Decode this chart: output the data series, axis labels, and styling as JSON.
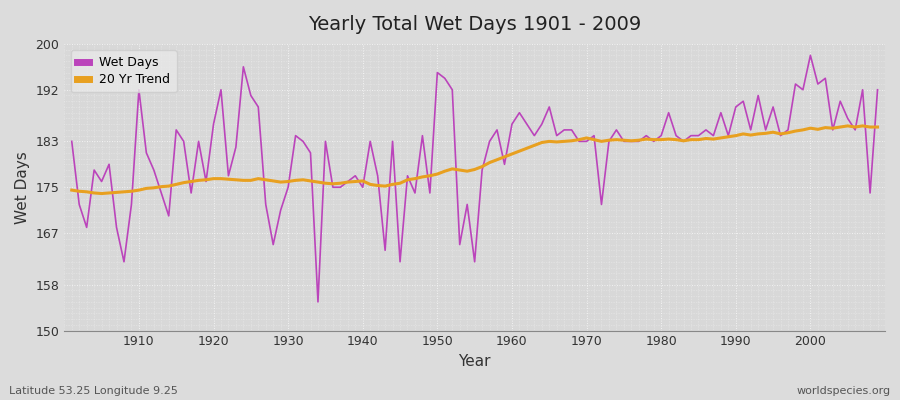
{
  "title": "Yearly Total Wet Days 1901 - 2009",
  "xlabel": "Year",
  "ylabel": "Wet Days",
  "footnote_left": "Latitude 53.25 Longitude 9.25",
  "footnote_right": "worldspecies.org",
  "ylim": [
    150,
    200
  ],
  "yticks": [
    150,
    158,
    167,
    175,
    183,
    192,
    200
  ],
  "line_color": "#bb44bb",
  "trend_color": "#e8a020",
  "bg_color": "#dcdcdc",
  "plot_bg_color": "#d8d8d8",
  "grid_color": "#ffffff",
  "years": [
    1901,
    1902,
    1903,
    1904,
    1905,
    1906,
    1907,
    1908,
    1909,
    1910,
    1911,
    1912,
    1913,
    1914,
    1915,
    1916,
    1917,
    1918,
    1919,
    1920,
    1921,
    1922,
    1923,
    1924,
    1925,
    1926,
    1927,
    1928,
    1929,
    1930,
    1931,
    1932,
    1933,
    1934,
    1935,
    1936,
    1937,
    1938,
    1939,
    1940,
    1941,
    1942,
    1943,
    1944,
    1945,
    1946,
    1947,
    1948,
    1949,
    1950,
    1951,
    1952,
    1953,
    1954,
    1955,
    1956,
    1957,
    1958,
    1959,
    1960,
    1961,
    1962,
    1963,
    1964,
    1965,
    1966,
    1967,
    1968,
    1969,
    1970,
    1971,
    1972,
    1973,
    1974,
    1975,
    1976,
    1977,
    1978,
    1979,
    1980,
    1981,
    1982,
    1983,
    1984,
    1985,
    1986,
    1987,
    1988,
    1989,
    1990,
    1991,
    1992,
    1993,
    1994,
    1995,
    1996,
    1997,
    1998,
    1999,
    2000,
    2001,
    2002,
    2003,
    2004,
    2005,
    2006,
    2007,
    2008,
    2009
  ],
  "wet_days": [
    183,
    172,
    168,
    178,
    176,
    179,
    168,
    162,
    172,
    192,
    181,
    178,
    174,
    170,
    185,
    183,
    174,
    183,
    176,
    186,
    192,
    177,
    182,
    196,
    191,
    189,
    172,
    165,
    171,
    175,
    184,
    183,
    181,
    155,
    183,
    175,
    175,
    176,
    177,
    175,
    183,
    177,
    164,
    183,
    162,
    177,
    174,
    184,
    174,
    195,
    194,
    192,
    165,
    172,
    162,
    178,
    183,
    185,
    179,
    186,
    188,
    186,
    184,
    186,
    189,
    184,
    185,
    185,
    183,
    183,
    184,
    172,
    183,
    185,
    183,
    183,
    183,
    184,
    183,
    184,
    188,
    184,
    183,
    184,
    184,
    185,
    184,
    188,
    184,
    189,
    190,
    185,
    191,
    185,
    189,
    184,
    185,
    193,
    192,
    198,
    193,
    194,
    185,
    190,
    187,
    185,
    192,
    174,
    192
  ],
  "trend": [
    174.5,
    174.3,
    174.2,
    174.0,
    173.9,
    174.0,
    174.1,
    174.2,
    174.3,
    174.5,
    174.8,
    174.9,
    175.1,
    175.2,
    175.5,
    175.8,
    176.0,
    176.2,
    176.3,
    176.5,
    176.5,
    176.4,
    176.3,
    176.2,
    176.2,
    176.5,
    176.3,
    176.1,
    175.9,
    176.0,
    176.2,
    176.3,
    176.1,
    175.9,
    175.7,
    175.6,
    175.7,
    175.9,
    176.0,
    176.1,
    175.5,
    175.3,
    175.2,
    175.5,
    175.7,
    176.3,
    176.5,
    176.8,
    177.0,
    177.3,
    177.8,
    178.2,
    178.0,
    177.8,
    178.1,
    178.6,
    179.3,
    179.8,
    180.3,
    180.8,
    181.3,
    181.8,
    182.3,
    182.8,
    183.0,
    182.9,
    183.0,
    183.1,
    183.3,
    183.6,
    183.3,
    183.0,
    183.2,
    183.3,
    183.2,
    183.1,
    183.2,
    183.4,
    183.3,
    183.3,
    183.4,
    183.3,
    183.1,
    183.3,
    183.3,
    183.5,
    183.4,
    183.6,
    183.8,
    184.0,
    184.3,
    184.1,
    184.3,
    184.4,
    184.6,
    184.3,
    184.5,
    184.8,
    185.0,
    185.3,
    185.1,
    185.4,
    185.3,
    185.5,
    185.7,
    185.5,
    185.7,
    185.5,
    185.5
  ]
}
